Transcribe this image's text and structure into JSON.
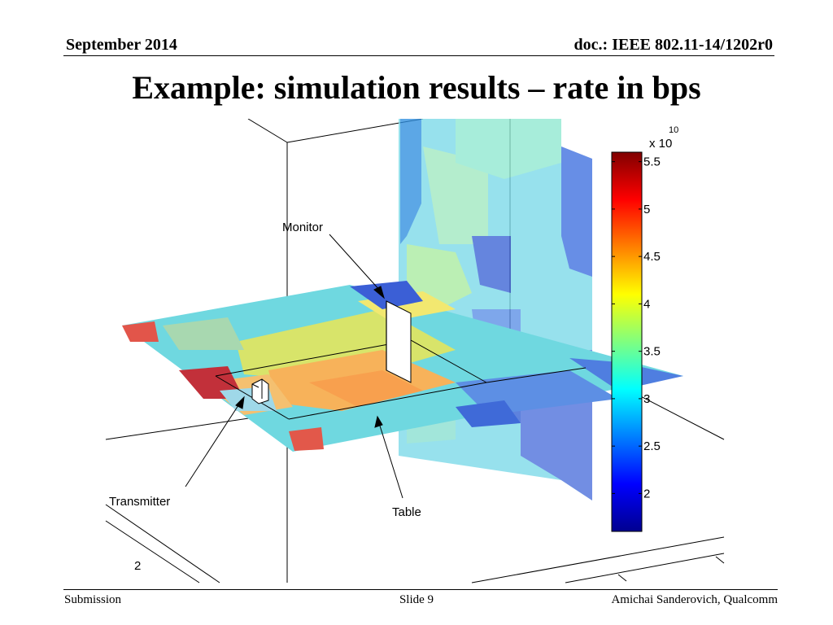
{
  "header": {
    "date": "September 2014",
    "doc": "doc.: IEEE 802.11-14/1202r0"
  },
  "title": "Example: simulation results – rate in bps",
  "footer": {
    "left": "Submission",
    "center": "Slide 9",
    "right": "Amichai Sanderovich, Qualcomm"
  },
  "figure": {
    "annotations": {
      "monitor": "Monitor",
      "transmitter": "Transmitter",
      "table": "Table"
    },
    "axis_tick": "2"
  },
  "chart_data": {
    "type": "heatmap",
    "title": "",
    "colorbar": {
      "min": 1.6,
      "max": 5.6,
      "exponent_label": "x 10",
      "exponent": "10",
      "ticks": [
        "5.5",
        "5",
        "4.5",
        "4",
        "3.5",
        "3",
        "2.5",
        "2"
      ],
      "tick_values": [
        5.5,
        5.0,
        4.5,
        4.0,
        3.5,
        3.0,
        2.5,
        2.0
      ],
      "colormap": "jet"
    }
  }
}
